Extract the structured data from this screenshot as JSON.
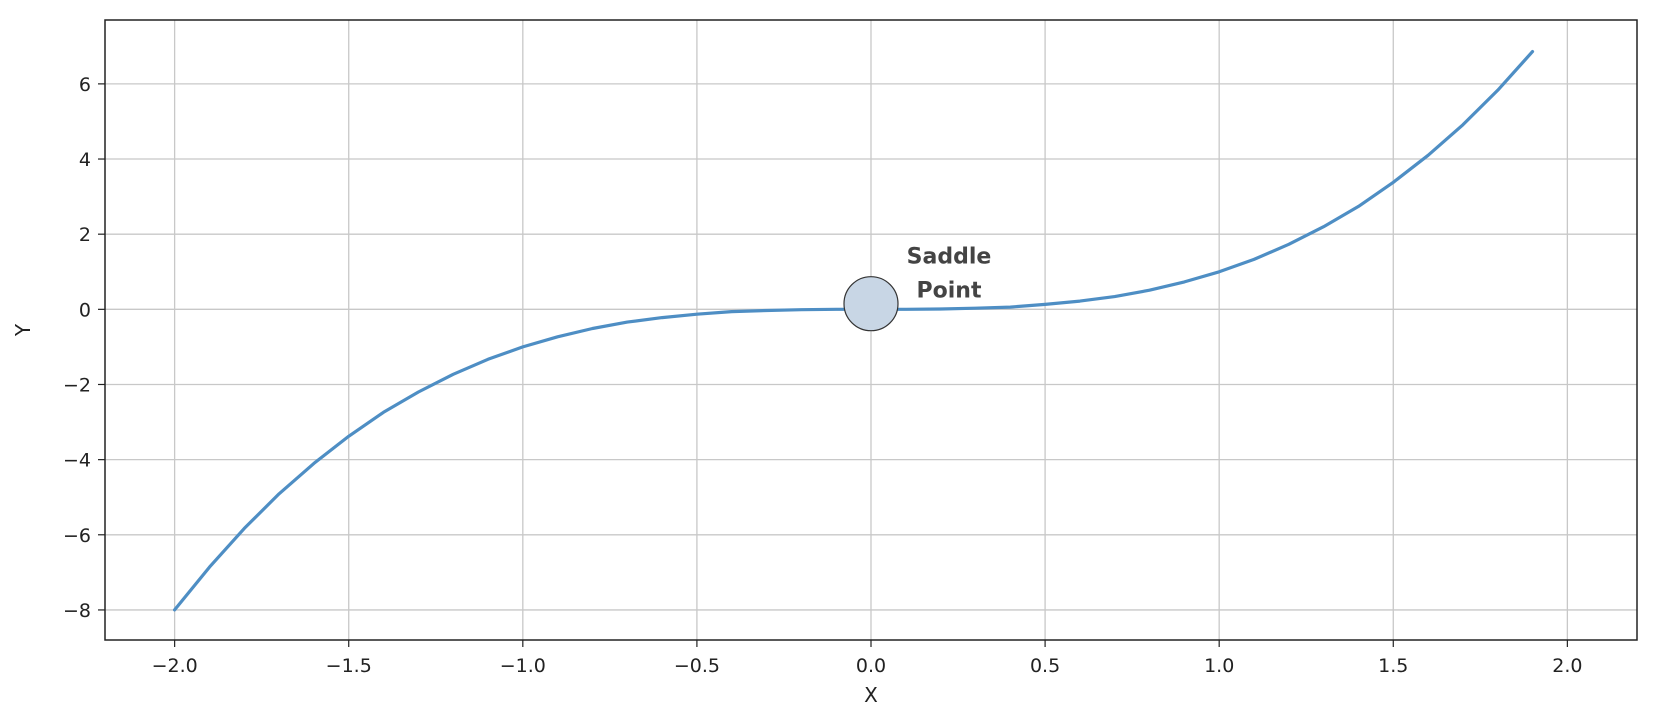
{
  "chart_data": {
    "type": "line",
    "title": "",
    "xlabel": "X",
    "ylabel": "Y",
    "xlim": [
      -2.2,
      2.2
    ],
    "ylim": [
      -8.8,
      7.7
    ],
    "xticks": [
      -2.0,
      -1.5,
      -1.0,
      -0.5,
      0.0,
      0.5,
      1.0,
      1.5,
      2.0
    ],
    "xtick_labels": [
      "−2.0",
      "−1.5",
      "−1.0",
      "−0.5",
      "0.0",
      "0.5",
      "1.0",
      "1.5",
      "2.0"
    ],
    "yticks": [
      -8,
      -6,
      -4,
      -2,
      0,
      2,
      4,
      6
    ],
    "ytick_labels": [
      "−8",
      "−6",
      "−4",
      "−2",
      "0",
      "2",
      "4",
      "6"
    ],
    "grid": true,
    "series": [
      {
        "color": "#4e8ec4",
        "x": [
          -2.0,
          -1.9,
          -1.8,
          -1.7,
          -1.6,
          -1.5,
          -1.4,
          -1.3,
          -1.2,
          -1.1,
          -1.0,
          -0.9,
          -0.8,
          -0.7,
          -0.6,
          -0.5,
          -0.4,
          -0.3,
          -0.2,
          -0.1,
          0.0,
          0.1,
          0.2,
          0.3,
          0.4,
          0.5,
          0.6,
          0.7,
          0.8,
          0.9,
          1.0,
          1.1,
          1.2,
          1.3,
          1.4,
          1.5,
          1.6,
          1.7,
          1.8,
          1.9
        ],
        "y": [
          -8.0,
          -6.86,
          -5.83,
          -4.91,
          -4.1,
          -3.38,
          -2.74,
          -2.2,
          -1.73,
          -1.33,
          -1.0,
          -0.73,
          -0.51,
          -0.34,
          -0.22,
          -0.13,
          -0.06,
          -0.03,
          -0.01,
          0.0,
          0.0,
          0.0,
          0.01,
          0.03,
          0.06,
          0.13,
          0.22,
          0.34,
          0.51,
          0.73,
          1.0,
          1.33,
          1.73,
          2.2,
          2.74,
          3.38,
          4.1,
          4.91,
          5.83,
          6.86
        ]
      }
    ],
    "annotations": [
      {
        "text_line1": "Saddle",
        "text_line2": "Point",
        "x": 0.0,
        "y": 0.15,
        "marker_fill": "#c8d6e5"
      }
    ]
  }
}
